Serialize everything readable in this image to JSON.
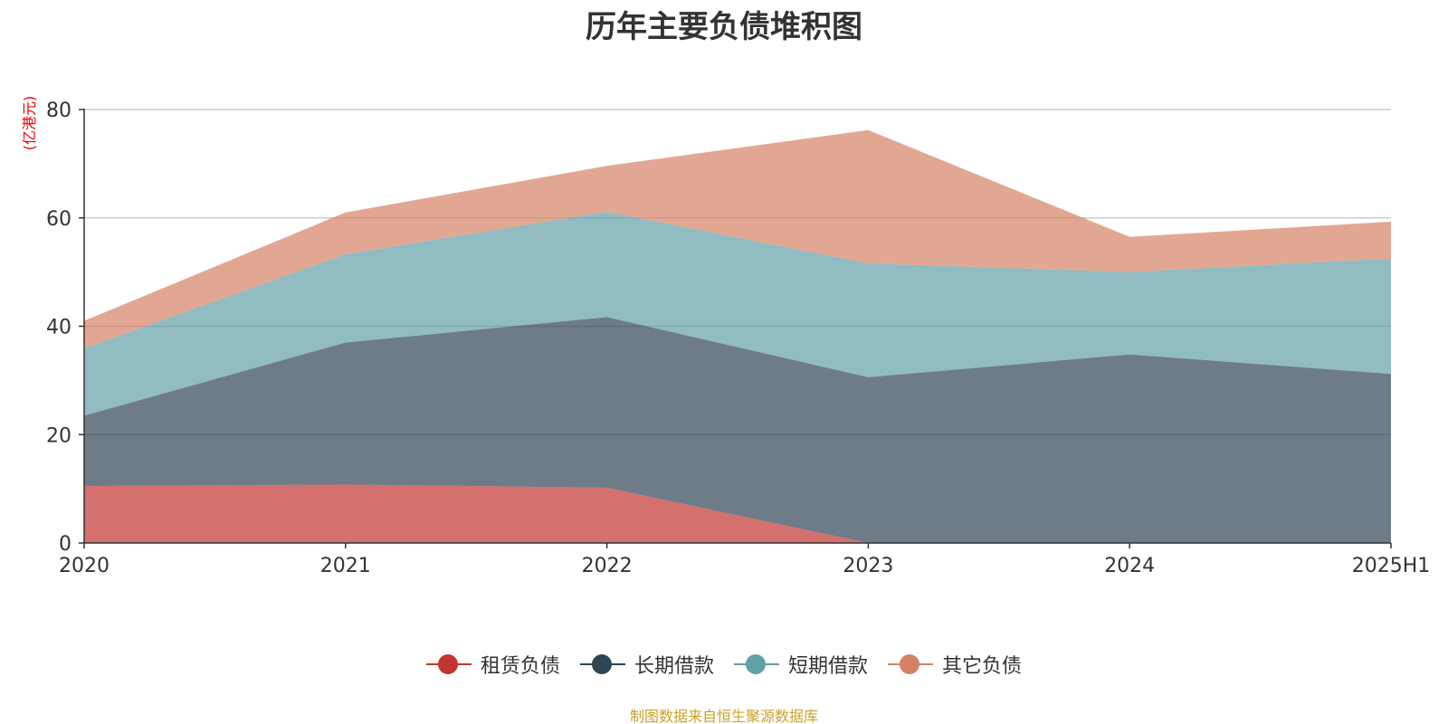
{
  "colors": {
    "lease": "#c23531",
    "long_term": "#2f4554",
    "short_term": "#61a0a8",
    "other": "#d48265",
    "unit": "#ee0000",
    "source": "#c9a227",
    "grid": "#cccccc",
    "axis": "#333333"
  },
  "chart_data": {
    "type": "area",
    "stacked": true,
    "title": "历年主要负债堆积图",
    "ylabel": "(亿港元)",
    "xlabel": "",
    "categories": [
      "2020",
      "2021",
      "2022",
      "2023",
      "2024",
      "2025H1"
    ],
    "ylim": [
      0,
      80
    ],
    "yticks": [
      0,
      20,
      40,
      60,
      80
    ],
    "grid": "horizontal",
    "legend_position": "bottom-center",
    "series": [
      {
        "name": "租赁负债",
        "color_key": "lease",
        "values": [
          10.5,
          10.8,
          10.2,
          0,
          0,
          0
        ]
      },
      {
        "name": "长期借款",
        "color_key": "long_term",
        "values": [
          13.0,
          26.2,
          31.5,
          30.6,
          34.8,
          31.2
        ]
      },
      {
        "name": "短期借款",
        "color_key": "short_term",
        "values": [
          12.4,
          16.3,
          19.4,
          21.0,
          15.2,
          21.3
        ]
      },
      {
        "name": "其它负债",
        "color_key": "other",
        "values": [
          5.1,
          7.7,
          8.5,
          24.6,
          6.5,
          6.8
        ]
      }
    ],
    "source": "制图数据来自恒生聚源数据库"
  }
}
